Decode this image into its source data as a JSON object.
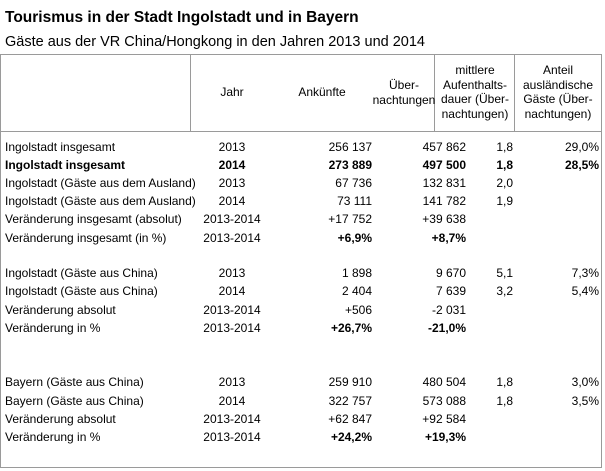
{
  "title": "Tourismus in der Stadt Ingolstadt und in Bayern",
  "subtitle": "Gäste aus der VR China/Hongkong in den Jahren 2013 und 2014",
  "headers": {
    "jahr": "Jahr",
    "ankuenfte": "Ankünfte",
    "uebernachtungen": "Über-\nnachtungen",
    "aufenthaltsdauer": "mittlere\nAufenthalts-\ndauer (Über-\nnachtungen)",
    "anteil": "Anteil\nausländische\nGäste (Über-\nnachtungen)"
  },
  "rows": [
    {
      "label": "Ingolstadt insgesamt",
      "jahr": "2013",
      "ankuenfte": "256 137",
      "uebernachtungen": "457 862",
      "dauer": "1,8",
      "anteil": "29,0%",
      "bold": false
    },
    {
      "label": "Ingolstadt insgesamt",
      "jahr": "2014",
      "ankuenfte": "273 889",
      "uebernachtungen": "497 500",
      "dauer": "1,8",
      "anteil": "28,5%",
      "bold": true
    },
    {
      "label": "Ingolstadt (Gäste aus dem Ausland)",
      "jahr": "2013",
      "ankuenfte": "67 736",
      "uebernachtungen": "132 831",
      "dauer": "2,0",
      "anteil": "",
      "bold": false
    },
    {
      "label": "Ingolstadt (Gäste aus dem Ausland)",
      "jahr": "2014",
      "ankuenfte": "73 111",
      "uebernachtungen": "141 782",
      "dauer": "1,9",
      "anteil": "",
      "bold": false
    },
    {
      "label": "Veränderung insgesamt (absolut)",
      "jahr": "2013-2014",
      "ankuenfte": "+17 752",
      "uebernachtungen": "+39 638",
      "dauer": "",
      "anteil": "",
      "bold": false
    },
    {
      "label": "Veränderung insgesamt (in %)",
      "jahr": "2013-2014",
      "ankuenfte": "+6,9%",
      "uebernachtungen": "+8,7%",
      "dauer": "",
      "anteil": "",
      "bold": false,
      "bold_values": true
    },
    {
      "label": "Ingolstadt (Gäste aus China)",
      "jahr": "2013",
      "ankuenfte": "1 898",
      "uebernachtungen": "9 670",
      "dauer": "5,1",
      "anteil": "7,3%",
      "bold": false
    },
    {
      "label": "Ingolstadt (Gäste aus China)",
      "jahr": "2014",
      "ankuenfte": "2 404",
      "uebernachtungen": "7 639",
      "dauer": "3,2",
      "anteil": "5,4%",
      "bold": false
    },
    {
      "label": "Veränderung absolut",
      "jahr": "2013-2014",
      "ankuenfte": "+506",
      "uebernachtungen": "-2 031",
      "dauer": "",
      "anteil": "",
      "bold": false
    },
    {
      "label": "Veränderung in %",
      "jahr": "2013-2014",
      "ankuenfte": "+26,7%",
      "uebernachtungen": "-21,0%",
      "dauer": "",
      "anteil": "",
      "bold": false,
      "bold_values": true
    },
    {
      "label": "Bayern (Gäste aus China)",
      "jahr": "2013",
      "ankuenfte": "259 910",
      "uebernachtungen": "480 504",
      "dauer": "1,8",
      "anteil": "3,0%",
      "bold": false
    },
    {
      "label": "Bayern (Gäste aus China)",
      "jahr": "2014",
      "ankuenfte": "322 757",
      "uebernachtungen": "573 088",
      "dauer": "1,8",
      "anteil": "3,5%",
      "bold": false
    },
    {
      "label": "Veränderung absolut",
      "jahr": "2013-2014",
      "ankuenfte": "+62 847",
      "uebernachtungen": "+92 584",
      "dauer": "",
      "anteil": "",
      "bold": false
    },
    {
      "label": "Veränderung in %",
      "jahr": "2013-2014",
      "ankuenfte": "+24,2%",
      "uebernachtungen": "+19,3%",
      "dauer": "",
      "anteil": "",
      "bold": false,
      "bold_values": true
    }
  ]
}
